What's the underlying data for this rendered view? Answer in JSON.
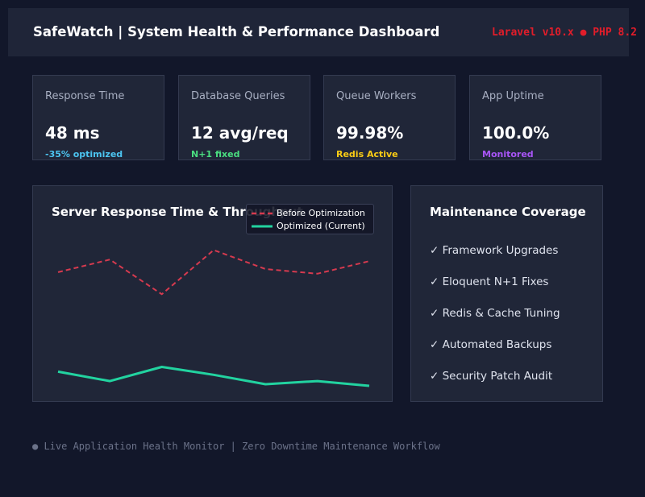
{
  "header": {
    "title": "SafeWatch | System Health & Performance Dashboard",
    "badge": "Laravel v10.x ● PHP 8.2",
    "badge_color": "#e11d2a"
  },
  "metrics": [
    {
      "label": "Response Time",
      "value": "48 ms",
      "note": "-35% optimized",
      "note_color": "#4cc4f0"
    },
    {
      "label": "Database Queries",
      "value": "12 avg/req",
      "note": "N+1 fixed",
      "note_color": "#4ade80"
    },
    {
      "label": "Queue Workers",
      "value": "99.98%",
      "note": "Redis Active",
      "note_color": "#facc15"
    },
    {
      "label": "App Uptime",
      "value": "100.0%",
      "note": "Monitored",
      "note_color": "#a855f7"
    }
  ],
  "chart_panel": {
    "title": "Server Response Time & Throughput"
  },
  "chart_data": {
    "type": "line",
    "x": [
      0,
      1,
      2,
      3,
      4,
      5,
      6
    ],
    "ylim": [
      0,
      100
    ],
    "grid": false,
    "legend_position": "top-right",
    "series": [
      {
        "name": "Before Optimization",
        "values": [
          72,
          80,
          58,
          86,
          74,
          71,
          79
        ],
        "color": "#d63a4f",
        "style": "dashed"
      },
      {
        "name": "Optimized (Current)",
        "values": [
          9,
          3,
          12,
          7,
          1,
          3,
          0
        ],
        "color": "#22d3a0",
        "style": "solid"
      }
    ]
  },
  "coverage": {
    "title": "Maintenance Coverage",
    "items": [
      "✓ Framework Upgrades",
      "✓ Eloquent N+1 Fixes",
      "✓ Redis & Cache Tuning",
      "✓ Automated Backups",
      "✓ Security Patch Audit"
    ]
  },
  "footer": {
    "text": "● Live Application Health Monitor | Zero Downtime Maintenance Workflow"
  }
}
